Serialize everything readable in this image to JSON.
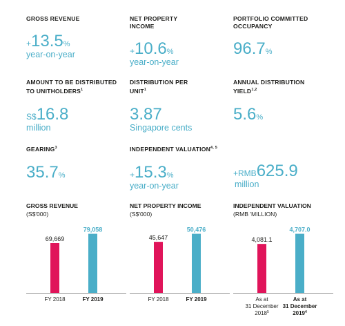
{
  "kpis": [
    {
      "label": "GROSS REVENUE",
      "sup": "",
      "prefix": "+",
      "value": "13.5",
      "suffix": "%",
      "sub": "year-on-year"
    },
    {
      "label": "NET PROPERTY INCOME",
      "sup": "",
      "prefix": "+",
      "value": "10.6",
      "suffix": "%",
      "sub": "year-on-year"
    },
    {
      "label": "PORTFOLIO COMMITTED OCCUPANCY",
      "sup": "",
      "prefix": "",
      "value": "96.7",
      "suffix": "%",
      "sub": ""
    },
    {
      "label": "AMOUNT TO BE DISTRIBUTED TO UNITHOLDERS",
      "sup": "1",
      "prefix": "S$",
      "value": "16.8",
      "suffix": "",
      "sub": "million"
    },
    {
      "label": "DISTRIBUTION PER UNIT",
      "sup": "1",
      "prefix": "",
      "value": "3.87",
      "suffix": "",
      "sub": "Singapore cents"
    },
    {
      "label": "ANNUAL DISTRIBUTION YIELD",
      "sup": "1,2",
      "prefix": "",
      "value": "5.6",
      "suffix": "%",
      "sub": ""
    },
    {
      "label": "GEARING",
      "sup": "3",
      "prefix": "",
      "value": "35.7",
      "suffix": "%",
      "sub": ""
    },
    {
      "label": "INDEPENDENT VALUATION",
      "sup": "4, 5",
      "prefix": "+",
      "value": "15.3",
      "suffix": "%",
      "sub": "year-on-year"
    },
    {
      "label": "",
      "sup": "",
      "prefix": "+RMB",
      "value": "625.9",
      "suffix": "",
      "sub": "million"
    }
  ],
  "charts": {
    "gross_revenue": {
      "title": "GROSS REVENUE",
      "unit": "(S$'000)"
    },
    "net_property_income": {
      "title": "NET PROPERTY INCOME",
      "unit": "(S$'000)"
    },
    "independent_valuation": {
      "title": "INDEPENDENT VALUATION",
      "unit": "(RMB 'MILLION)"
    }
  },
  "colors": {
    "accent": "#4aaec8",
    "highlight": "#e0145a",
    "text": "#1d1d1b"
  },
  "chart_data": [
    {
      "type": "bar",
      "title": "GROSS REVENUE",
      "ylabel": "(S$'000)",
      "categories": [
        "FY 2018",
        "FY 2019"
      ],
      "category_sups": [
        "",
        ""
      ],
      "values": [
        69669,
        79058
      ],
      "value_labels": [
        "69,669",
        "79,058"
      ],
      "colors": [
        "#e0145a",
        "#4aaec8"
      ],
      "bold": [
        false,
        true
      ]
    },
    {
      "type": "bar",
      "title": "NET PROPERTY INCOME",
      "ylabel": "(S$'000)",
      "categories": [
        "FY 2018",
        "FY 2019"
      ],
      "category_sups": [
        "",
        ""
      ],
      "values": [
        45647,
        50476
      ],
      "value_labels": [
        "45,647",
        "50,476"
      ],
      "colors": [
        "#e0145a",
        "#4aaec8"
      ],
      "bold": [
        false,
        true
      ]
    },
    {
      "type": "bar",
      "title": "INDEPENDENT VALUATION",
      "ylabel": "(RMB 'MILLION)",
      "categories": [
        "As at 31 December 2018",
        "As at 31 December 2019"
      ],
      "category_sups": [
        "5",
        "4"
      ],
      "values": [
        4081.1,
        4707.0
      ],
      "value_labels": [
        "4,081.1",
        "4,707.0"
      ],
      "colors": [
        "#e0145a",
        "#4aaec8"
      ],
      "bold": [
        false,
        true
      ]
    }
  ]
}
